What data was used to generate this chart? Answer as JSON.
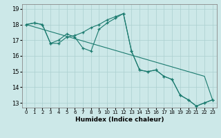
{
  "title": "",
  "xlabel": "Humidex (Indice chaleur)",
  "xlim": [
    -0.5,
    23.5
  ],
  "ylim": [
    12.7,
    19.3
  ],
  "xticks": [
    0,
    1,
    2,
    3,
    4,
    5,
    6,
    7,
    8,
    9,
    10,
    11,
    12,
    13,
    14,
    15,
    16,
    17,
    18,
    19,
    20,
    21,
    22,
    23
  ],
  "yticks": [
    13,
    14,
    15,
    16,
    17,
    18,
    19
  ],
  "bg_color": "#cce8e8",
  "grid_color": "#aacfcf",
  "line_color": "#1a7a6e",
  "line1_x": [
    0,
    1,
    2,
    3,
    4,
    5,
    6,
    7,
    8,
    9,
    10,
    11,
    12,
    13,
    14,
    15,
    16,
    17,
    18,
    19,
    20,
    21,
    22,
    23
  ],
  "line1_y": [
    18.0,
    18.1,
    18.0,
    16.8,
    16.8,
    17.2,
    17.3,
    17.5,
    17.8,
    18.0,
    18.3,
    18.5,
    18.7,
    16.3,
    15.1,
    15.0,
    15.1,
    14.7,
    14.5,
    13.5,
    13.2,
    12.8,
    13.0,
    13.2
  ],
  "line2_x": [
    0,
    1,
    2,
    3,
    4,
    5,
    6,
    7,
    8,
    9,
    10,
    11,
    12,
    13,
    14,
    15,
    16,
    17,
    18,
    19,
    20,
    21,
    22,
    23
  ],
  "line2_y": [
    18.0,
    17.85,
    17.7,
    17.55,
    17.4,
    17.25,
    17.1,
    16.95,
    16.8,
    16.65,
    16.5,
    16.35,
    16.2,
    16.05,
    15.9,
    15.75,
    15.6,
    15.45,
    15.3,
    15.15,
    15.0,
    14.85,
    14.7,
    13.2
  ],
  "line3_x": [
    0,
    1,
    2,
    3,
    4,
    5,
    6,
    7,
    8,
    9,
    10,
    11,
    12,
    13,
    14,
    15,
    16,
    17,
    18,
    19,
    20,
    21,
    22,
    23
  ],
  "line3_y": [
    18.0,
    18.1,
    18.0,
    16.8,
    17.0,
    17.4,
    17.2,
    16.5,
    16.3,
    17.7,
    18.1,
    18.4,
    18.7,
    16.3,
    15.1,
    15.0,
    15.1,
    14.7,
    14.5,
    13.5,
    13.2,
    12.8,
    13.0,
    13.2
  ]
}
